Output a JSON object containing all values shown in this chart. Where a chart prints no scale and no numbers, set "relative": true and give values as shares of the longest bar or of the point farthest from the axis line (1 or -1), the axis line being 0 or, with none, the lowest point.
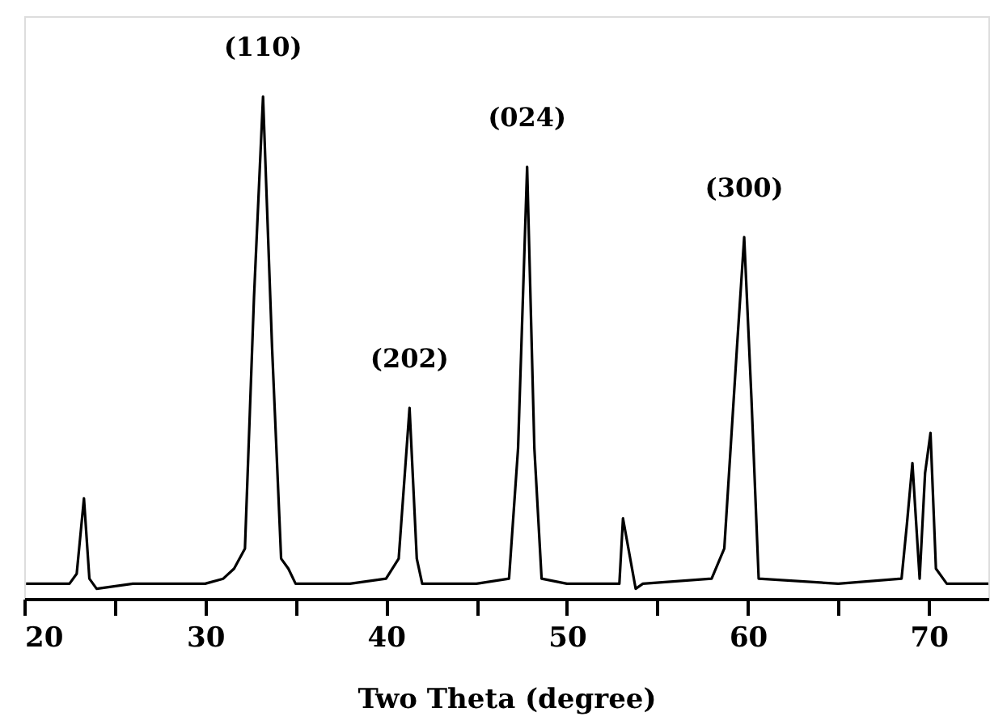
{
  "chart_data": {
    "type": "line",
    "relative": true,
    "xlabel": "Two Theta (degree)",
    "xlim": [
      20,
      73.3
    ],
    "xticks": [
      20,
      {
        "value": 25,
        "label": null
      },
      30,
      {
        "value": 35,
        "label": null
      },
      40,
      {
        "value": 45,
        "label": null
      },
      50,
      {
        "value": 55,
        "label": null
      },
      60,
      {
        "value": 65,
        "label": null
      },
      70
    ],
    "tick_labels": "x",
    "grid": false,
    "marker": "none",
    "line_style": "solid",
    "series": [
      {
        "color": "#000000",
        "x": [
          20.1,
          22.5,
          22.9,
          23.3,
          23.6,
          24,
          26,
          30,
          31,
          31.6,
          32.2,
          32.7,
          33.2,
          33.7,
          34.2,
          34.6,
          35,
          38,
          40,
          40.7,
          41.3,
          41.7,
          42,
          45,
          46.8,
          47.3,
          47.8,
          48.2,
          48.6,
          50,
          52.9,
          53.1,
          53.8,
          54.2,
          58,
          58.7,
          59.4,
          59.8,
          60.2,
          60.6,
          65,
          68.5,
          68.8,
          69.1,
          69.5,
          69.8,
          70.1,
          70.4,
          71,
          73.3
        ],
        "values": [
          0.03,
          0.03,
          0.05,
          0.2,
          0.04,
          0.02,
          0.03,
          0.03,
          0.04,
          0.06,
          0.1,
          0.6,
          1.0,
          0.5,
          0.08,
          0.06,
          0.03,
          0.03,
          0.04,
          0.08,
          0.38,
          0.08,
          0.03,
          0.03,
          0.04,
          0.3,
          0.86,
          0.3,
          0.04,
          0.03,
          0.03,
          0.16,
          0.02,
          0.03,
          0.04,
          0.1,
          0.5,
          0.72,
          0.4,
          0.04,
          0.03,
          0.04,
          0.15,
          0.27,
          0.04,
          0.25,
          0.33,
          0.06,
          0.03,
          0.03
        ]
      }
    ],
    "annotations": [
      {
        "text": "(110)",
        "x": 33.2,
        "y": 1.0
      },
      {
        "text": "(202)",
        "x": 41.3,
        "y": 0.38
      },
      {
        "text": "(024)",
        "x": 47.8,
        "y": 0.86
      },
      {
        "text": "(300)",
        "x": 59.8,
        "y": 0.72
      }
    ]
  }
}
